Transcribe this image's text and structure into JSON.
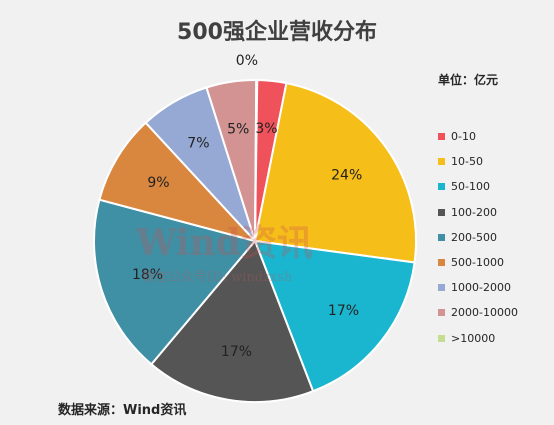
{
  "chart_data": {
    "type": "pie",
    "title": "500强企业营收分布",
    "unit_label": "单位：亿元",
    "source": "数据来源：Wind资讯",
    "categories": [
      "0-10",
      "10-50",
      "50-100",
      "100-200",
      "200-500",
      "500-1000",
      "1000-2000",
      "2000-10000",
      ">10000"
    ],
    "values": [
      3,
      24,
      17,
      17,
      18,
      9,
      7,
      5,
      0
    ],
    "labels": [
      "3%",
      "24%",
      "17%",
      "17%",
      "18%",
      "9%",
      "7%",
      "5%",
      "0%"
    ],
    "colors": [
      "#f0525b",
      "#f6be19",
      "#1ab5cf",
      "#555555",
      "#3f8fa5",
      "#d9863f",
      "#95a9d4",
      "#d39393",
      "#c5dd8f"
    ],
    "legend_position": "right"
  },
  "watermark": {
    "main": "Wind资讯",
    "sub": "微信公众号ID: windzxsh"
  }
}
